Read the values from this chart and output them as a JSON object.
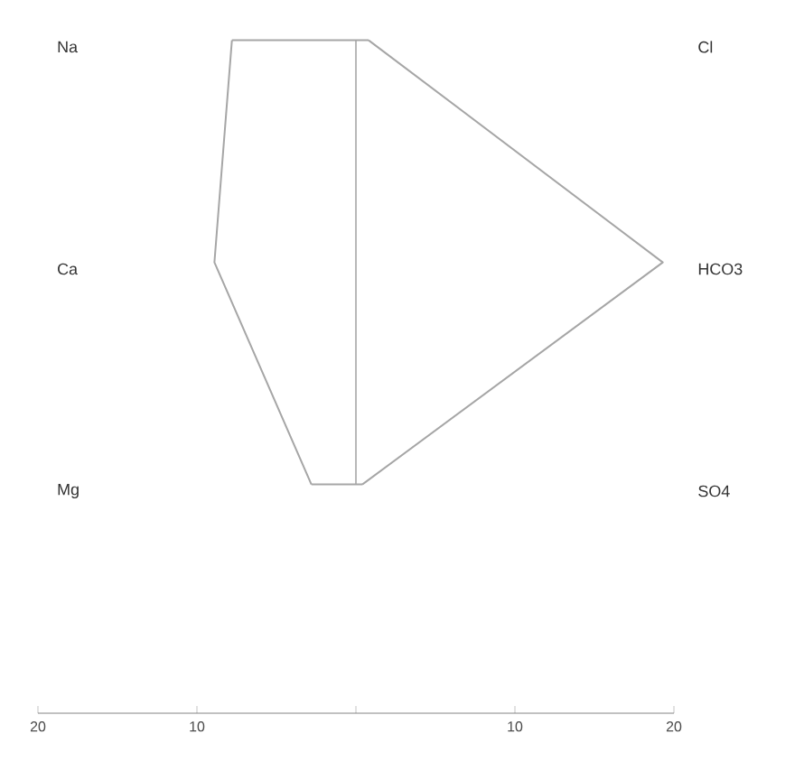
{
  "chart_data": {
    "type": "line",
    "orientation": "horizontal",
    "categories": [
      "Na",
      "Ca",
      "Mg"
    ],
    "y2_categories": [
      "Cl",
      "HCO3",
      "SO4"
    ],
    "series": [
      {
        "color": "#a6a6a6",
        "values": [
          -7.8,
          -8.9,
          -2.8
        ]
      },
      {
        "color": "#a6a6a6",
        "axis": "y2",
        "values": [
          0.8,
          19.3,
          0.4
        ]
      }
    ],
    "xlim": [
      -20,
      20
    ],
    "xticks": [
      {
        "value": -20,
        "label": "20"
      },
      {
        "value": -10,
        "label": "10"
      },
      {
        "value": 0,
        "label": null
      },
      {
        "value": 10,
        "label": "10"
      },
      {
        "value": 20,
        "label": "20"
      }
    ],
    "ref_lines": [
      {
        "axis": "x",
        "value": 0,
        "color": "#a6a6a6"
      }
    ]
  }
}
